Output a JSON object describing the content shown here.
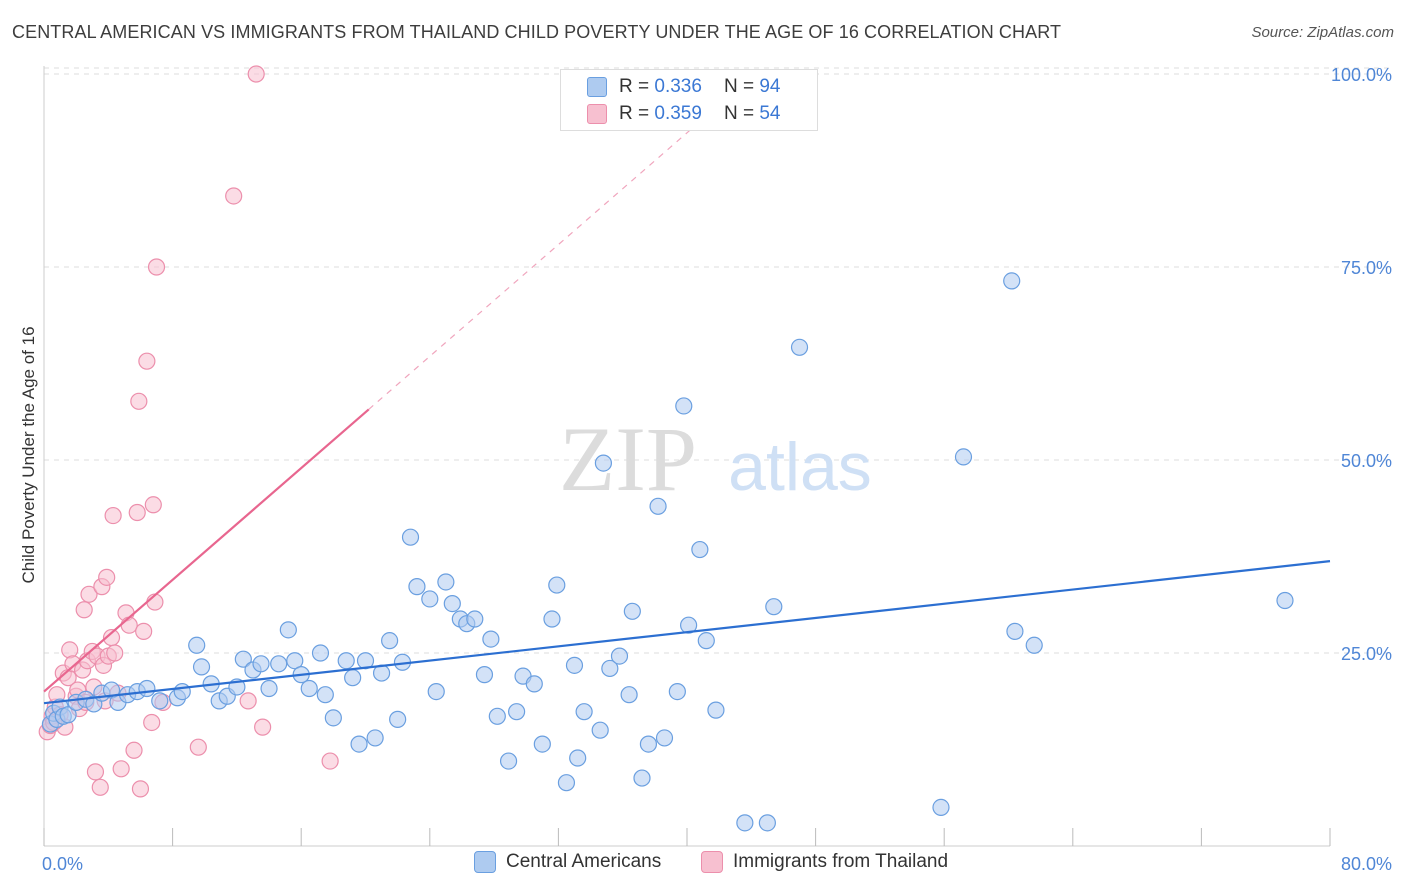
{
  "header": {
    "title": "CENTRAL AMERICAN VS IMMIGRANTS FROM THAILAND CHILD POVERTY UNDER THE AGE OF 16 CORRELATION CHART",
    "source": "Source: ZipAtlas.com"
  },
  "watermark": {
    "zip": "ZIP",
    "atlas": "atlas"
  },
  "legend": {
    "rows": [
      {
        "r_label": "R =",
        "r_value": "0.336",
        "n_label": "N =",
        "n_value": "94"
      },
      {
        "r_label": "R =",
        "r_value": "0.359",
        "n_label": "N =",
        "n_value": "54"
      }
    ]
  },
  "colors": {
    "blue_fill": "#aecbf0",
    "blue_stroke": "#6a9fe0",
    "blue_line": "#2c6fd1",
    "pink_fill": "#f7c0d0",
    "pink_stroke": "#ec8fac",
    "pink_line": "#e8668f",
    "grid": "#dddddd",
    "tick_text": "#4f86d6"
  },
  "chart_data": {
    "type": "scatter",
    "title": "CENTRAL AMERICAN VS IMMIGRANTS FROM THAILAND CHILD POVERTY UNDER THE AGE OF 16 CORRELATION CHART",
    "xlabel": "",
    "ylabel": "Child Poverty Under the Age of 16",
    "xlim": [
      0,
      80
    ],
    "ylim": [
      0,
      100
    ],
    "x_tick_labels": [
      "0.0%",
      "80.0%"
    ],
    "y_tick_values": [
      25,
      50,
      75,
      100
    ],
    "y_tick_labels": [
      "25.0%",
      "50.0%",
      "75.0%",
      "100.0%"
    ],
    "grid": true,
    "legend_position": "top-center",
    "series": [
      {
        "name": "Central Americans",
        "color": "#aecbf0",
        "R": 0.336,
        "N": 94,
        "trend": {
          "x": [
            0,
            80
          ],
          "y": [
            18.5,
            36.9
          ],
          "dashed_from_x": null
        },
        "points": [
          [
            0.4,
            15.8
          ],
          [
            0.6,
            17.2
          ],
          [
            0.8,
            16.4
          ],
          [
            1.0,
            18.0
          ],
          [
            1.2,
            16.8
          ],
          [
            1.5,
            17.0
          ],
          [
            2.0,
            18.6
          ],
          [
            2.6,
            19.0
          ],
          [
            3.1,
            18.4
          ],
          [
            3.6,
            19.8
          ],
          [
            4.2,
            20.2
          ],
          [
            4.6,
            18.6
          ],
          [
            5.2,
            19.6
          ],
          [
            5.8,
            20.0
          ],
          [
            6.4,
            20.4
          ],
          [
            7.2,
            18.8
          ],
          [
            8.3,
            19.2
          ],
          [
            8.6,
            20.0
          ],
          [
            9.5,
            26.0
          ],
          [
            9.8,
            23.2
          ],
          [
            10.4,
            21.0
          ],
          [
            10.9,
            18.8
          ],
          [
            11.4,
            19.4
          ],
          [
            12.0,
            20.6
          ],
          [
            12.4,
            24.2
          ],
          [
            13.0,
            22.8
          ],
          [
            13.5,
            23.6
          ],
          [
            14.0,
            20.4
          ],
          [
            14.6,
            23.6
          ],
          [
            15.2,
            28.0
          ],
          [
            15.6,
            24.0
          ],
          [
            16.0,
            22.2
          ],
          [
            16.5,
            20.4
          ],
          [
            17.2,
            25.0
          ],
          [
            17.5,
            19.6
          ],
          [
            18.0,
            16.6
          ],
          [
            18.8,
            24.0
          ],
          [
            19.2,
            21.8
          ],
          [
            19.6,
            13.2
          ],
          [
            20.0,
            24.0
          ],
          [
            20.6,
            14.0
          ],
          [
            21.0,
            22.4
          ],
          [
            21.5,
            26.6
          ],
          [
            22.0,
            16.4
          ],
          [
            22.3,
            23.8
          ],
          [
            22.8,
            40.0
          ],
          [
            23.2,
            33.6
          ],
          [
            24.0,
            32.0
          ],
          [
            24.4,
            20.0
          ],
          [
            25.0,
            34.2
          ],
          [
            25.4,
            31.4
          ],
          [
            25.9,
            29.4
          ],
          [
            26.3,
            28.8
          ],
          [
            26.8,
            29.4
          ],
          [
            27.4,
            22.2
          ],
          [
            27.8,
            26.8
          ],
          [
            28.2,
            16.8
          ],
          [
            28.9,
            11.0
          ],
          [
            29.4,
            17.4
          ],
          [
            29.8,
            22.0
          ],
          [
            30.5,
            21.0
          ],
          [
            31.0,
            13.2
          ],
          [
            31.6,
            29.4
          ],
          [
            31.9,
            33.8
          ],
          [
            32.5,
            8.2
          ],
          [
            33.0,
            23.4
          ],
          [
            33.2,
            11.4
          ],
          [
            33.6,
            17.4
          ],
          [
            34.6,
            15.0
          ],
          [
            34.8,
            49.6
          ],
          [
            35.2,
            23.0
          ],
          [
            35.8,
            24.6
          ],
          [
            36.4,
            19.6
          ],
          [
            36.6,
            30.4
          ],
          [
            37.2,
            8.8
          ],
          [
            37.6,
            13.2
          ],
          [
            38.2,
            44.0
          ],
          [
            38.6,
            14.0
          ],
          [
            39.4,
            20.0
          ],
          [
            39.8,
            57.0
          ],
          [
            40.1,
            28.6
          ],
          [
            40.8,
            38.4
          ],
          [
            41.2,
            26.6
          ],
          [
            41.8,
            17.6
          ],
          [
            43.6,
            3.0
          ],
          [
            45.0,
            3.0
          ],
          [
            45.4,
            31.0
          ],
          [
            47.0,
            64.6
          ],
          [
            55.8,
            5.0
          ],
          [
            57.2,
            50.4
          ],
          [
            60.2,
            73.2
          ],
          [
            60.4,
            27.8
          ],
          [
            61.6,
            26.0
          ],
          [
            77.2,
            31.8
          ]
        ]
      },
      {
        "name": "Immigrants from Thailand",
        "color": "#f7c0d0",
        "R": 0.359,
        "N": 54,
        "trend": {
          "x": [
            0,
            42
          ],
          "y": [
            20.0,
            96.0
          ],
          "dashed_from_x": 20.2
        },
        "points": [
          [
            0.2,
            14.8
          ],
          [
            0.4,
            15.6
          ],
          [
            0.5,
            16.8
          ],
          [
            0.7,
            18.0
          ],
          [
            0.8,
            19.6
          ],
          [
            1.0,
            17.0
          ],
          [
            1.2,
            22.4
          ],
          [
            1.3,
            15.4
          ],
          [
            1.5,
            21.8
          ],
          [
            1.6,
            25.4
          ],
          [
            1.8,
            23.6
          ],
          [
            2.0,
            19.4
          ],
          [
            2.1,
            20.2
          ],
          [
            2.2,
            17.8
          ],
          [
            2.4,
            22.8
          ],
          [
            2.5,
            30.6
          ],
          [
            2.6,
            18.6
          ],
          [
            2.7,
            24.0
          ],
          [
            2.8,
            32.6
          ],
          [
            3.0,
            25.2
          ],
          [
            3.1,
            20.6
          ],
          [
            3.2,
            9.6
          ],
          [
            3.3,
            24.6
          ],
          [
            3.5,
            7.6
          ],
          [
            3.6,
            33.6
          ],
          [
            3.7,
            23.4
          ],
          [
            3.8,
            18.8
          ],
          [
            3.9,
            34.8
          ],
          [
            4.0,
            24.6
          ],
          [
            4.2,
            27.0
          ],
          [
            4.3,
            42.8
          ],
          [
            4.4,
            25.0
          ],
          [
            4.6,
            19.8
          ],
          [
            4.8,
            10.0
          ],
          [
            5.1,
            30.2
          ],
          [
            5.3,
            28.6
          ],
          [
            5.6,
            12.4
          ],
          [
            5.8,
            43.2
          ],
          [
            5.9,
            57.6
          ],
          [
            6.0,
            7.4
          ],
          [
            6.2,
            27.8
          ],
          [
            6.4,
            62.8
          ],
          [
            6.7,
            16.0
          ],
          [
            6.8,
            44.2
          ],
          [
            6.9,
            31.6
          ],
          [
            7.0,
            75.0
          ],
          [
            7.4,
            18.6
          ],
          [
            9.6,
            12.8
          ],
          [
            11.8,
            84.2
          ],
          [
            12.7,
            18.8
          ],
          [
            13.2,
            100.0
          ],
          [
            13.6,
            15.4
          ],
          [
            17.8,
            11.0
          ],
          [
            0.6,
            16.0
          ]
        ]
      }
    ]
  },
  "bottom_legend": {
    "items": [
      {
        "label": "Central Americans"
      },
      {
        "label": "Immigrants from Thailand"
      }
    ]
  }
}
